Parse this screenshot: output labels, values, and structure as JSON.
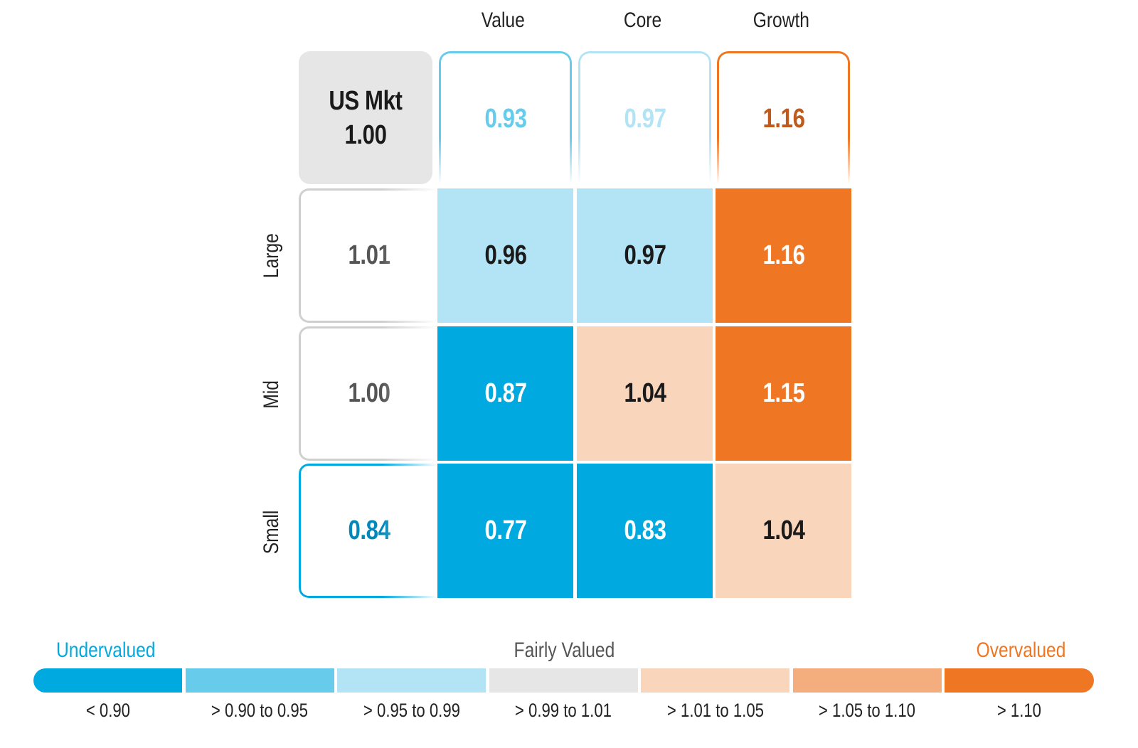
{
  "chart_data": {
    "type": "heatmap",
    "columns": [
      "Value",
      "Core",
      "Growth"
    ],
    "rows": [
      "Large",
      "Mid",
      "Small"
    ],
    "market": {
      "label": "US Mkt",
      "value": "1.00"
    },
    "column_totals": [
      "0.93",
      "0.97",
      "1.16"
    ],
    "row_totals": [
      "1.01",
      "1.00",
      "0.84"
    ],
    "values": [
      [
        "0.96",
        "0.97",
        "1.16"
      ],
      [
        "0.87",
        "1.04",
        "1.15"
      ],
      [
        "0.77",
        "0.83",
        "1.04"
      ]
    ],
    "legend": {
      "left_label": "Undervalued",
      "center_label": "Fairly Valued",
      "right_label": "Overvalued",
      "ranges": [
        "< 0.90",
        "> 0.90 to 0.95",
        "> 0.95 to 0.99",
        "> 0.99 to 1.01",
        "> 1.01 to 1.05",
        "> 1.05 to 1.10",
        "> 1.10"
      ],
      "colors": [
        "#00a9e0",
        "#67cbeb",
        "#b3e4f5",
        "#e6e6e6",
        "#f9d5bc",
        "#f4ad7c",
        "#ef7622"
      ]
    }
  }
}
